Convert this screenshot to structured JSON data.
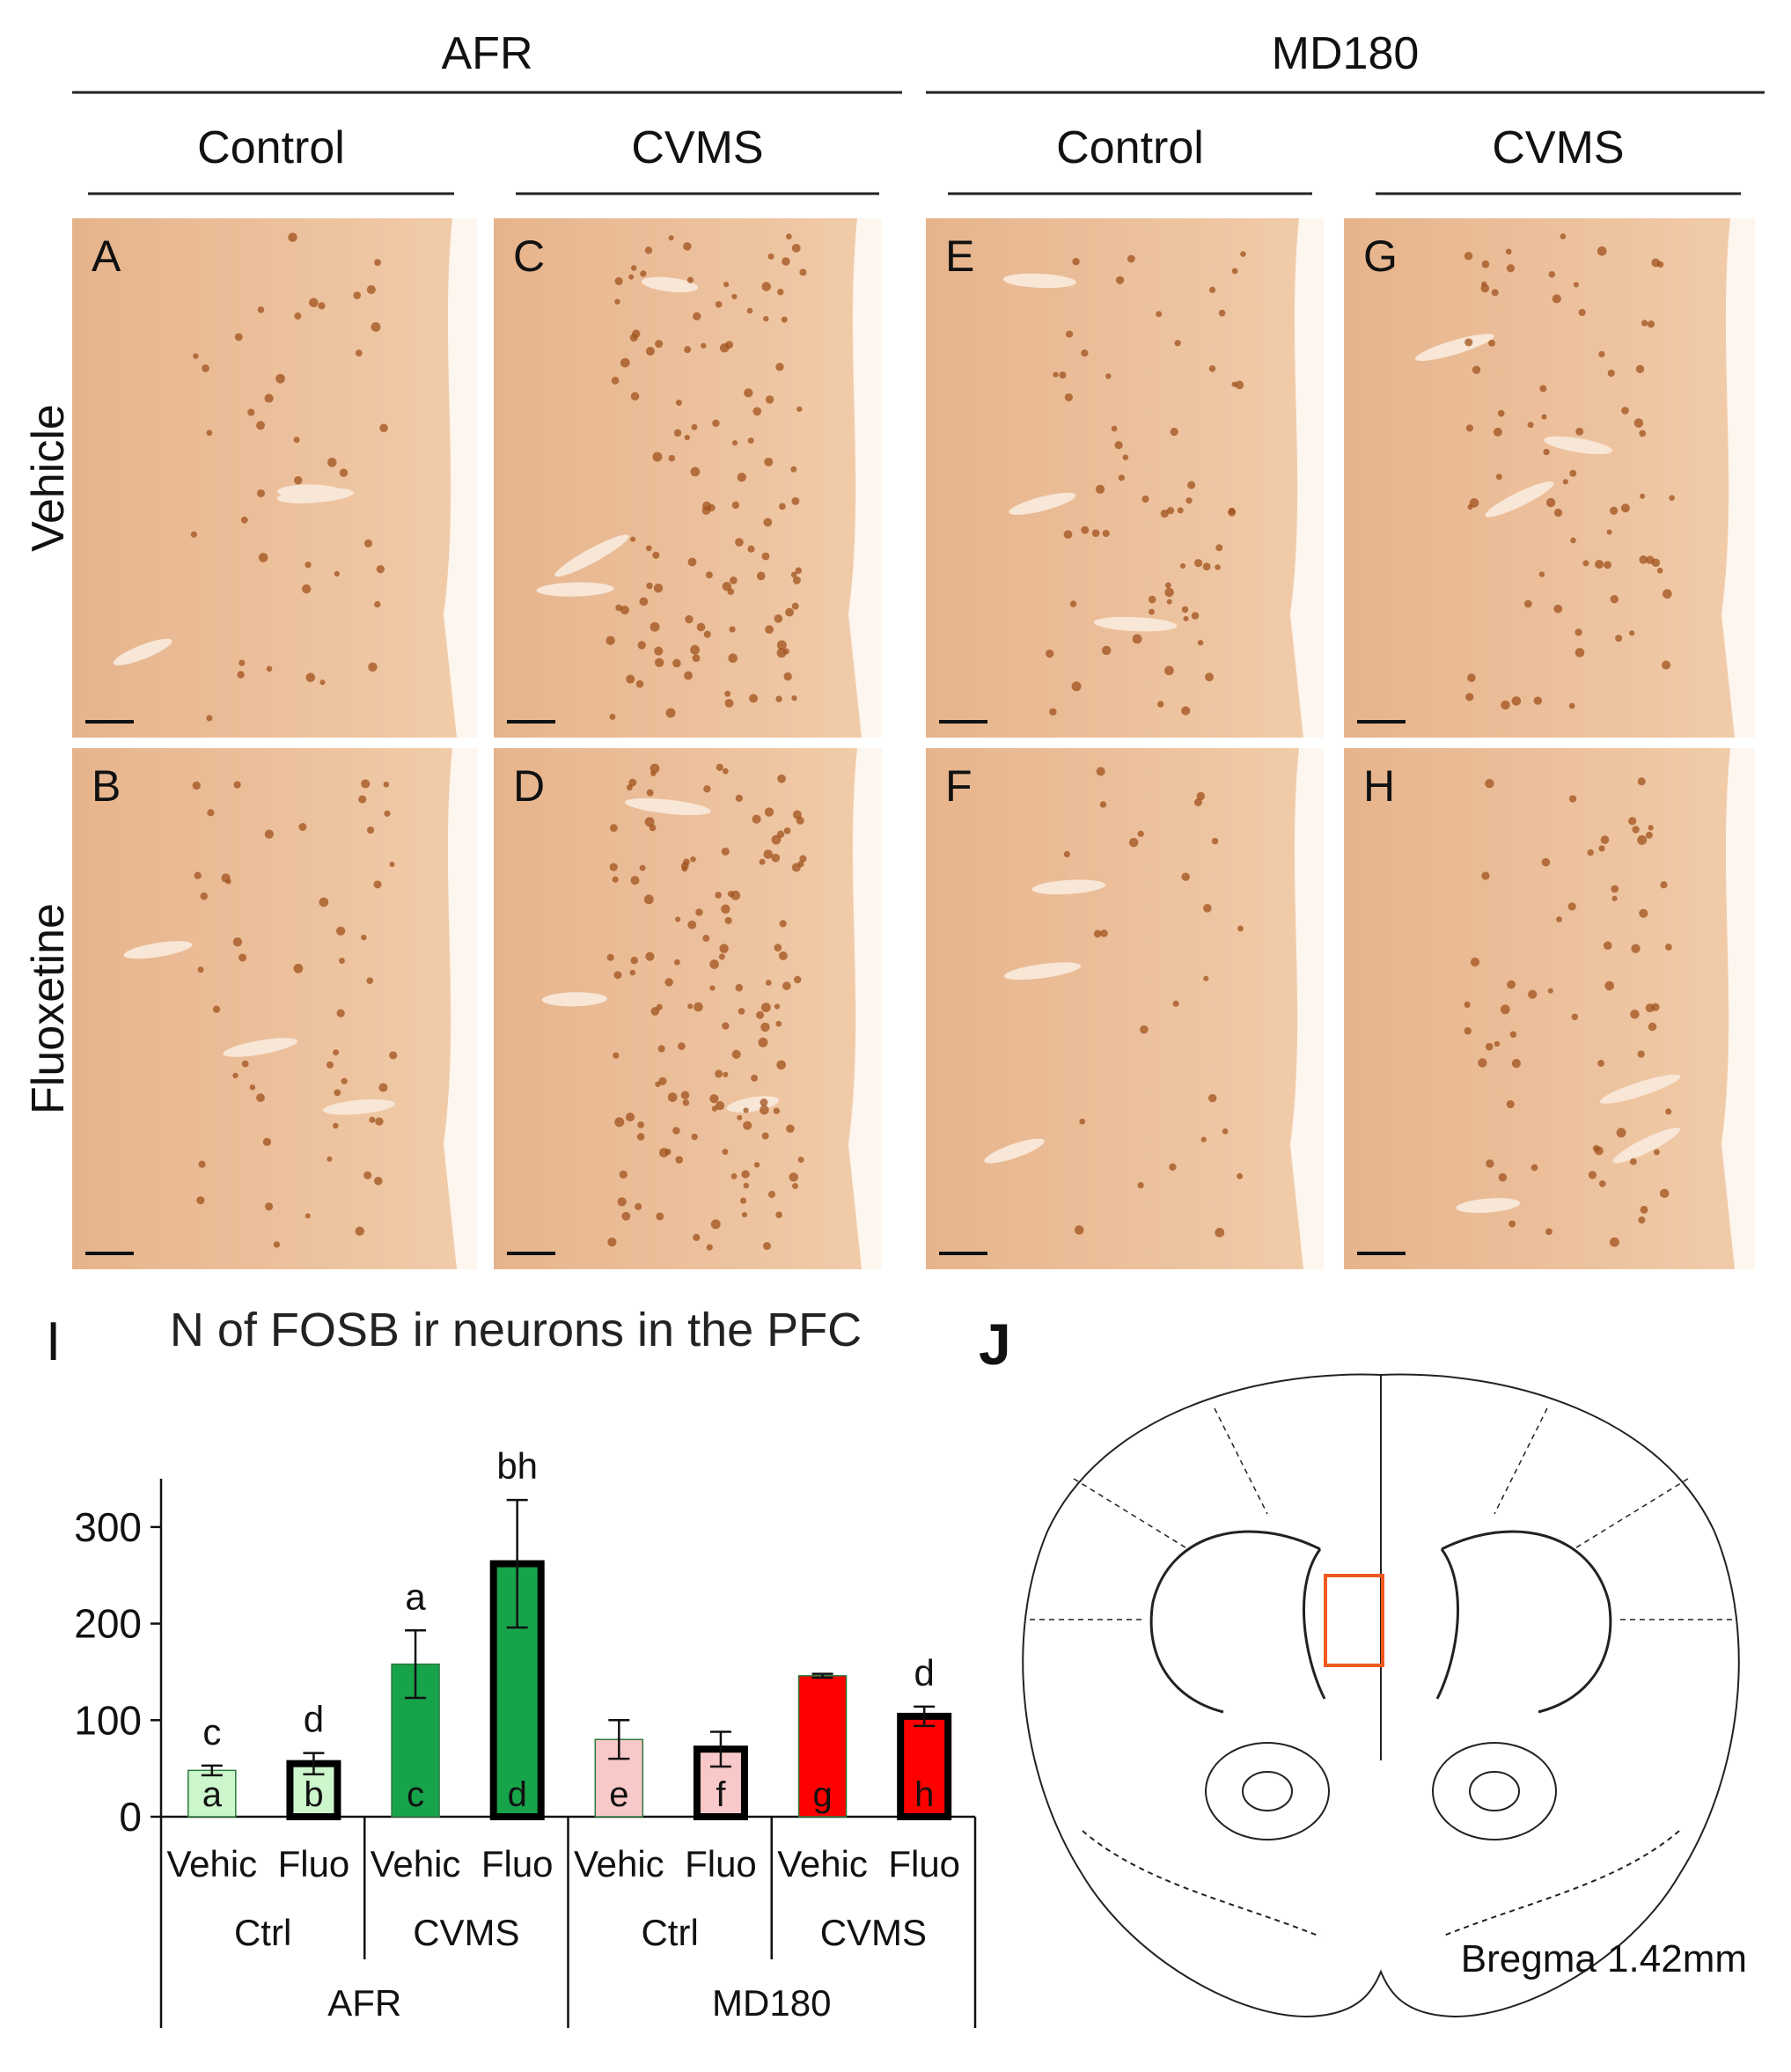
{
  "figure": {
    "columns": [
      {
        "label": "AFR",
        "subcolumns": [
          "Control",
          "CVMS"
        ]
      },
      {
        "label": "MD180",
        "subcolumns": [
          "Control",
          "CVMS"
        ]
      }
    ],
    "rows": [
      "Vehicle",
      "Fluoxetine"
    ],
    "panels": [
      [
        "A",
        "C",
        "E",
        "G"
      ],
      [
        "B",
        "D",
        "F",
        "H"
      ]
    ]
  },
  "panel_i_label": "I",
  "chart_data": {
    "type": "bar",
    "title": "N of FOSB ir neurons in the PFC",
    "categories": [
      "Vehic",
      "Fluo",
      "Vehic",
      "Fluo",
      "Vehic",
      "Fluo",
      "Vehic",
      "Fluo"
    ],
    "groups": [
      "Ctrl",
      "CVMS",
      "Ctrl",
      "CVMS"
    ],
    "supergroups": [
      "AFR",
      "MD180"
    ],
    "values": [
      48,
      55,
      158,
      262,
      80,
      70,
      146,
      104
    ],
    "errors": [
      5,
      11,
      35,
      66,
      20,
      18,
      2,
      10
    ],
    "top_labels": [
      "c",
      "d",
      "a",
      "bh",
      null,
      null,
      null,
      "d"
    ],
    "bar_labels": [
      "a",
      "b",
      "c",
      "d",
      "e",
      "f",
      "g",
      "h"
    ],
    "bar_colors": [
      "#ccf7cc",
      "#ccf7cc",
      "#17a34a",
      "#17a34a",
      "#f9c8c8",
      "#f9c8c8",
      "#ff0000",
      "#ff0000"
    ],
    "ylim": [
      0,
      350
    ],
    "yticks": [
      0,
      100,
      200,
      300
    ]
  },
  "panel_j": {
    "label": "J",
    "caption": "Bregma 1.42mm"
  }
}
